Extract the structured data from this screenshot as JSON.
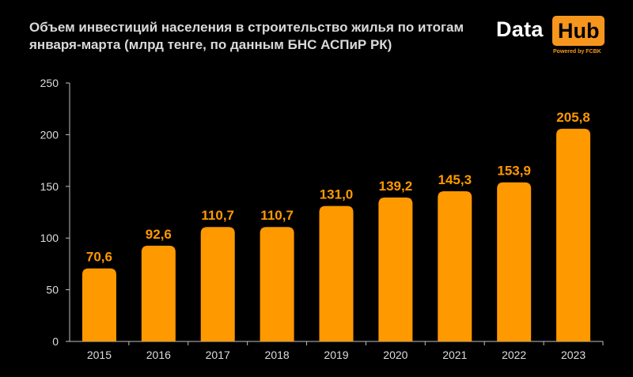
{
  "title": {
    "line1": "Объем инвестиций населения в строительство жилья по итогам",
    "line2": "января-марта (млрд тенге, по данным БНС АСПиР РК)"
  },
  "logo": {
    "data": "Data",
    "hub": "Hub",
    "tagline": "Powered by FCBK"
  },
  "colors": {
    "bar": "#ff9900",
    "label": "#ff9900",
    "axis_text": "#dddddd",
    "background": "#000000"
  },
  "chart_data": {
    "type": "bar",
    "categories": [
      "2015",
      "2016",
      "2017",
      "2018",
      "2019",
      "2020",
      "2021",
      "2022",
      "2023"
    ],
    "values": [
      70.6,
      92.6,
      110.7,
      110.7,
      131.0,
      139.2,
      145.3,
      153.9,
      205.8
    ],
    "data_labels": [
      "70,6",
      "92,6",
      "110,7",
      "110,7",
      "131,0",
      "139,2",
      "145,3",
      "153,9",
      "205,8"
    ],
    "title": "Объем инвестиций населения в строительство жилья по итогам января-марта (млрд тенге, по данным БНС АСПиР РК)",
    "xlabel": "",
    "ylabel": "",
    "ylim": [
      0,
      250
    ],
    "yticks": [
      0,
      50,
      100,
      150,
      200,
      250
    ],
    "grid": false,
    "legend": "none"
  }
}
